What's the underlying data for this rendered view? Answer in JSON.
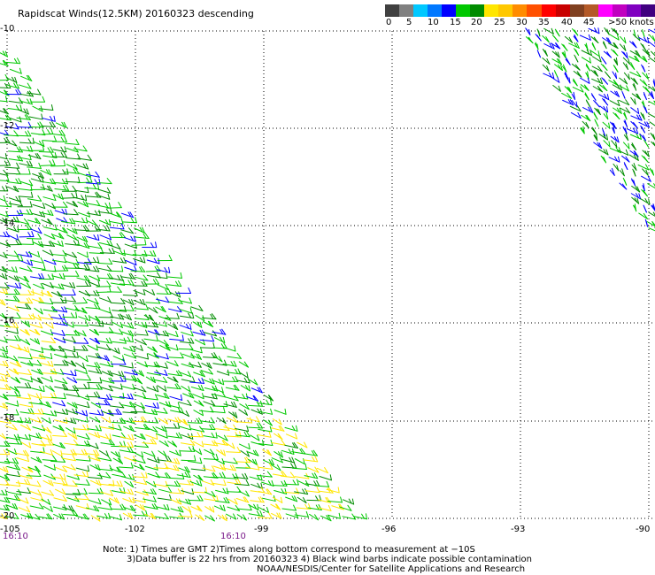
{
  "title": "Rapidscat Winds(12.5KM) 20160323 descending",
  "colorbar": {
    "colors": [
      "#404040",
      "#808080",
      "#00c8ff",
      "#0078ff",
      "#0000ff",
      "#00c800",
      "#008c00",
      "#ffe600",
      "#ffc800",
      "#ff8c00",
      "#ff5000",
      "#ff0000",
      "#c80000",
      "#804020",
      "#b45a28",
      "#ff00ff",
      "#c000c0",
      "#8000c0",
      "#400080"
    ],
    "labels": [
      "0",
      "5",
      "10",
      "15",
      "20",
      "25",
      "30",
      "35",
      "40",
      "45",
      ">50 knots"
    ]
  },
  "lat_labels": [
    "-10",
    "-12",
    "-14",
    "-16",
    "-18",
    "-20"
  ],
  "lon_labels": [
    "-105",
    "-102",
    "-99",
    "-96",
    "-93",
    "-90"
  ],
  "time_labels": [
    "16:10",
    "16:10"
  ],
  "notes": [
    "Note: 1) Times are GMT 2)Times along bottom correspond to measurement at −10S",
    "3)Data buffer is 22 hrs from 20160323 4) Black wind barbs indicate possible contamination",
    "NOAA/NESDIS/Center for Satellite Applications and Research"
  ],
  "barb_colors": {
    "green": "#00c800",
    "dark_green": "#008c00",
    "blue": "#0000ff",
    "yellow": "#ffe600",
    "black": "#000000"
  }
}
